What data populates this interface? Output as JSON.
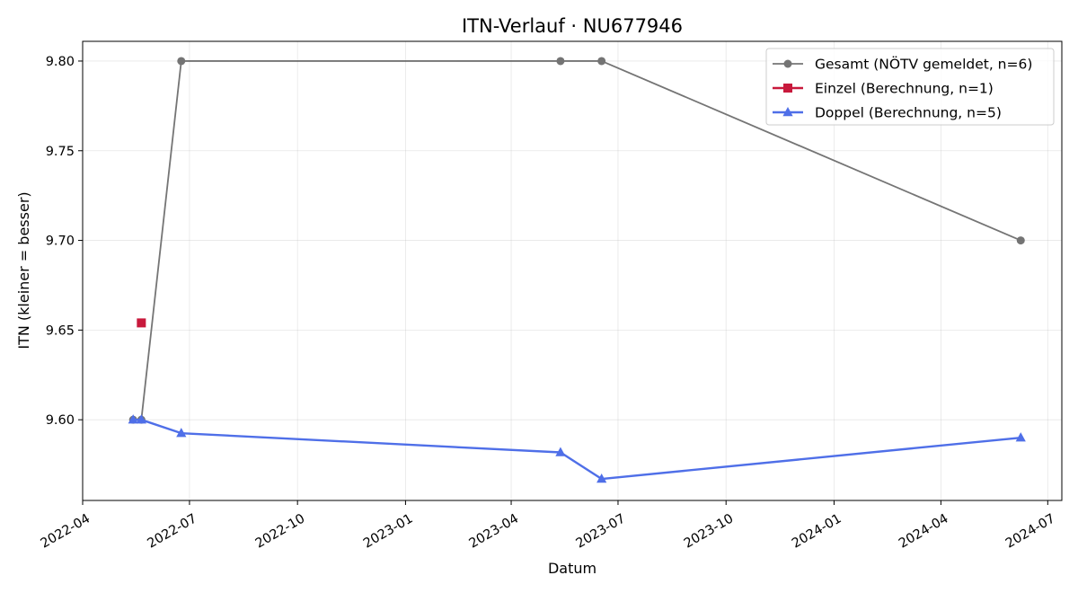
{
  "chart_data": {
    "type": "line",
    "title": "ITN-Verlauf · NU677946",
    "xlabel": "Datum",
    "ylabel": "ITN  (kleiner = besser)",
    "x_type": "date",
    "xlim": [
      "2022-04-01",
      "2024-07-13"
    ],
    "ylim": [
      9.555,
      9.811
    ],
    "x_ticks": [
      "2022-04-01",
      "2022-07-01",
      "2022-10-01",
      "2023-01-01",
      "2023-04-01",
      "2023-07-01",
      "2023-10-01",
      "2024-01-01",
      "2024-04-01",
      "2024-07-01"
    ],
    "x_tick_labels": [
      "2022-04",
      "2022-07",
      "2022-10",
      "2023-01",
      "2023-04",
      "2023-07",
      "2023-10",
      "2024-01",
      "2024-04",
      "2024-07"
    ],
    "y_ticks": [
      9.6,
      9.65,
      9.7,
      9.75,
      9.8
    ],
    "y_tick_labels": [
      "9.60",
      "9.65",
      "9.70",
      "9.75",
      "9.80"
    ],
    "grid": true,
    "legend_position": "top-right",
    "series": [
      {
        "name": "Gesamt (NÖTV gemeldet, n=6)",
        "color": "#666666",
        "marker": "circle",
        "line_width": 1.8,
        "opacity": 0.9,
        "x": [
          "2022-05-14",
          "2022-05-21",
          "2022-06-24",
          "2023-05-13",
          "2023-06-17",
          "2024-06-08"
        ],
        "y": [
          9.6,
          9.6,
          9.8,
          9.8,
          9.8,
          9.7
        ]
      },
      {
        "name": "Einzel (Berechnung, n=1)",
        "color": "#c8193c",
        "marker": "square",
        "line_width": 2.4,
        "opacity": 1,
        "x": [
          "2022-05-21"
        ],
        "y": [
          9.654
        ]
      },
      {
        "name": "Doppel (Berechnung, n=5)",
        "color": "#4f6fe8",
        "marker": "triangle",
        "line_width": 2.4,
        "opacity": 1,
        "x": [
          "2022-05-14",
          "2022-05-21",
          "2022-06-24",
          "2023-05-13",
          "2023-06-17",
          "2024-06-08"
        ],
        "y": [
          9.6,
          9.6,
          9.5925,
          9.5818,
          9.567,
          9.59
        ]
      }
    ]
  }
}
